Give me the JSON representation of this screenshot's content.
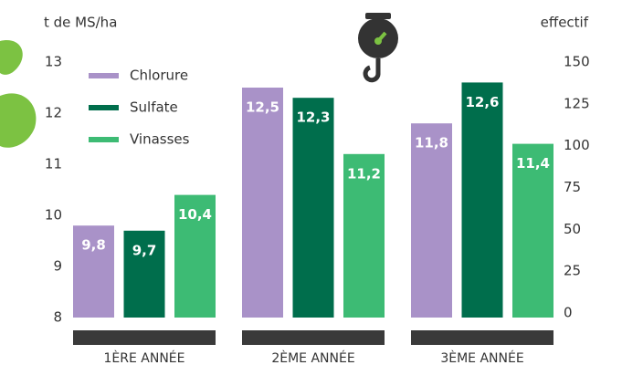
{
  "chart_data": {
    "type": "bar",
    "y_label": "t de MS/ha",
    "y2_label": "effectif",
    "categories": [
      "1ÈRE ANNÉE",
      "2ÈME ANNÉE",
      "3ÈME ANNÉE"
    ],
    "series": [
      {
        "name": "Chlorure",
        "color": "#a992c8",
        "values": [
          9.8,
          12.5,
          11.8
        ],
        "value_labels": [
          "9,8",
          "12,5",
          "11,8"
        ]
      },
      {
        "name": "Sulfate",
        "color": "#006e4c",
        "values": [
          9.7,
          12.3,
          12.6
        ],
        "value_labels": [
          "9,7",
          "12,3",
          "12,6"
        ]
      },
      {
        "name": "Vinasses",
        "color": "#3dbb74",
        "values": [
          10.4,
          11.2,
          11.4
        ],
        "value_labels": [
          "10,4",
          "11,2",
          "11,4"
        ]
      }
    ],
    "ylim": [
      8,
      13
    ],
    "yticks": [
      8,
      9,
      10,
      11,
      12,
      13
    ],
    "y2lim": [
      0,
      150
    ],
    "y2ticks": [
      0,
      25,
      50,
      75,
      100,
      125,
      150
    ],
    "legend": "top-left",
    "grid": false
  }
}
